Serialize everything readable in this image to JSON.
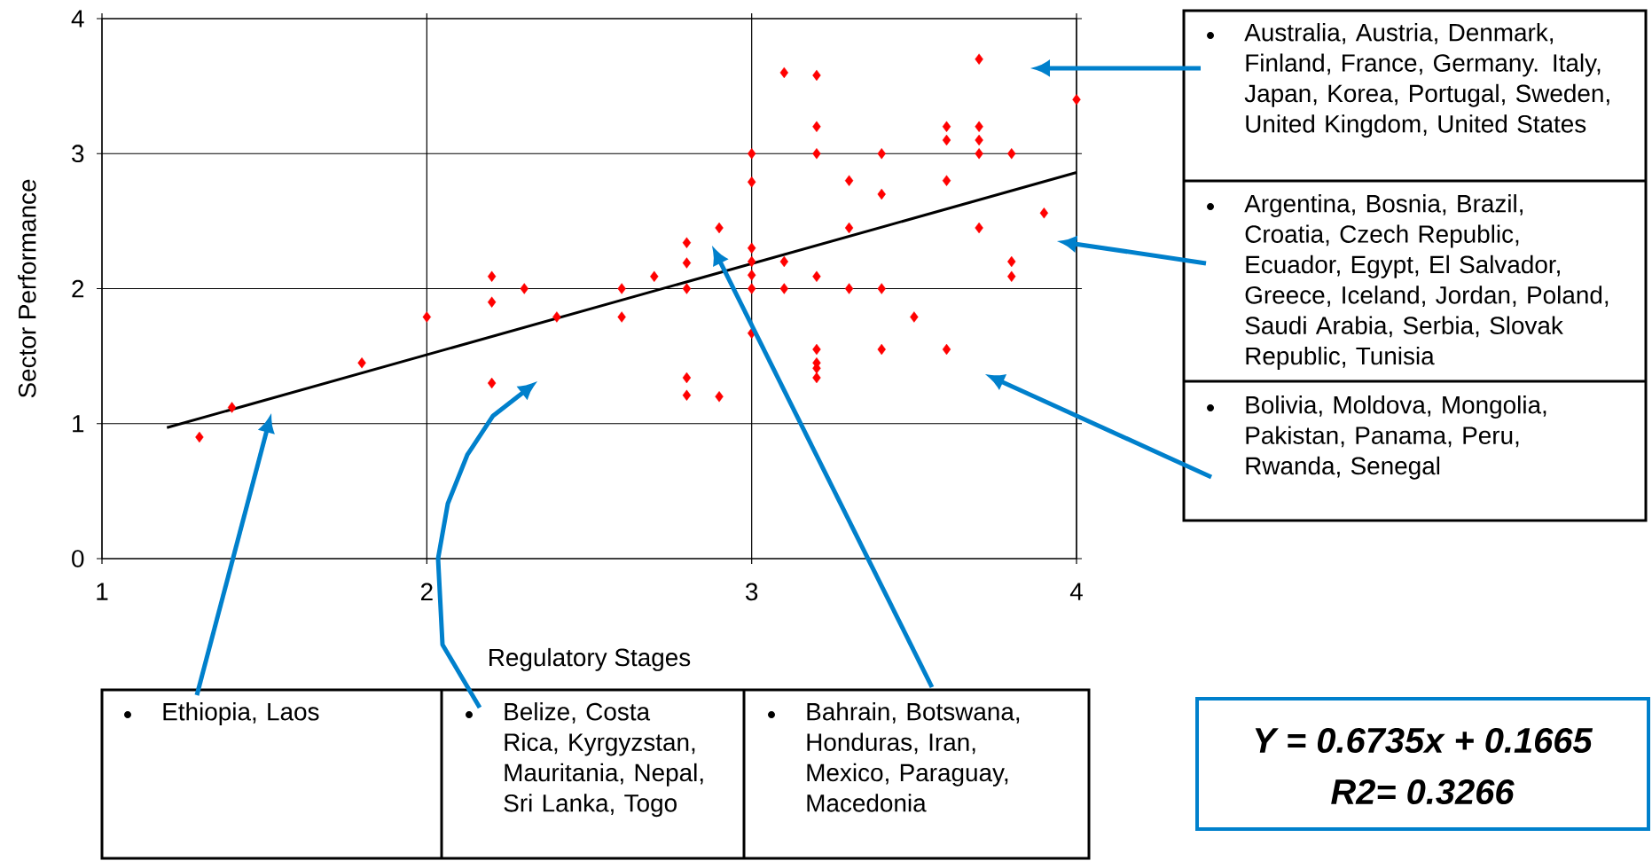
{
  "chart_data": {
    "type": "scatter",
    "xlabel": "Regulatory Stages",
    "ylabel": "Sector Performance",
    "xlim": [
      1,
      4
    ],
    "ylim": [
      0,
      4
    ],
    "xticks": [
      1,
      2,
      3,
      4
    ],
    "yticks": [
      0,
      1,
      2,
      3,
      4
    ],
    "grid": true,
    "series": [
      {
        "type": "scatter",
        "color": "#ff0000",
        "marker": "diamond",
        "x": [
          1.3,
          1.4,
          1.8,
          2.0,
          2.2,
          2.2,
          2.2,
          2.3,
          2.4,
          2.6,
          2.6,
          2.7,
          2.8,
          2.8,
          2.8,
          2.8,
          2.8,
          2.9,
          2.9,
          3.0,
          3.0,
          3.0,
          3.0,
          3.0,
          3.0,
          3.0,
          3.1,
          3.1,
          3.1,
          3.2,
          3.2,
          3.2,
          3.2,
          3.2,
          3.2,
          3.2,
          3.2,
          3.3,
          3.3,
          3.3,
          3.4,
          3.4,
          3.4,
          3.4,
          3.5,
          3.6,
          3.6,
          3.6,
          3.6,
          3.7,
          3.7,
          3.7,
          3.7,
          3.7,
          3.8,
          3.8,
          3.8,
          3.9,
          4.0
        ],
        "values": [
          0.9,
          1.12,
          1.45,
          1.79,
          2.09,
          1.9,
          1.3,
          2.0,
          1.79,
          2.0,
          1.79,
          2.09,
          2.34,
          2.19,
          2.0,
          1.34,
          1.21,
          2.45,
          1.2,
          3.0,
          2.79,
          2.3,
          2.2,
          2.1,
          2.0,
          1.67,
          3.6,
          2.2,
          2.0,
          3.58,
          3.2,
          3.0,
          2.09,
          1.55,
          1.45,
          1.41,
          1.34,
          2.8,
          2.45,
          2.0,
          3.0,
          2.7,
          2.0,
          1.55,
          1.79,
          3.2,
          3.1,
          2.8,
          1.55,
          3.7,
          3.2,
          3.1,
          3.0,
          2.45,
          3.0,
          2.2,
          2.09,
          2.56,
          3.4
        ]
      },
      {
        "type": "line",
        "color": "#000000",
        "marker": "none",
        "x": [
          1.2,
          4.0
        ],
        "values": [
          0.97,
          2.86
        ]
      }
    ],
    "annotations": [
      "Australia, Austria, Denmark, Finland, France, Germany. Italy, Japan, Korea, Portugal, Sweden, United Kingdom, United States",
      "Argentina, Bosnia, Brazil, Croatia, Czech Republic, Ecuador, Egypt, El Salvador, Greece, Iceland, Jordan, Poland, Saudi Arabia, Serbia, Slovak Republic, Tunisia",
      "Bolivia, Moldova, Mongolia, Pakistan, Panama, Peru, Rwanda, Senegal",
      "Ethiopia, Laos",
      "Belize, Costa Rica, Kyrgyzstan, Mauritania, Nepal, Sri Lanka, Togo",
      "Bahrain, Botswana, Honduras, Iran, Mexico, Paraguay, Macedonia",
      "Y = 0.6735x + 0.1665",
      "R2= 0.3266"
    ]
  }
}
